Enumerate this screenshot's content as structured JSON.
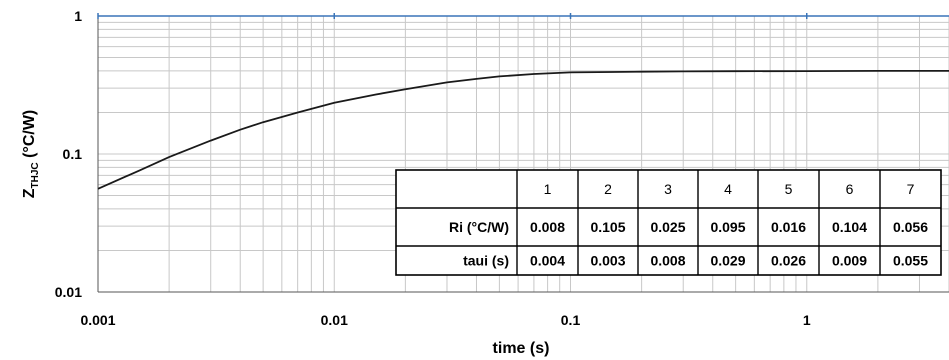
{
  "chart_data": {
    "type": "line",
    "x_scale": "log",
    "y_scale": "log",
    "xlabel": "time (s)",
    "ylabel_main": "Z",
    "ylabel_sub": "THJC",
    "ylabel_unit": " (°C/W)",
    "xlim": [
      0.001,
      4
    ],
    "ylim": [
      0.01,
      1
    ],
    "grid": "on",
    "x_ticks": [
      {
        "value": 0.001,
        "label": "0.001"
      },
      {
        "value": 0.01,
        "label": "0.01"
      },
      {
        "value": 0.1,
        "label": "0.1"
      },
      {
        "value": 1,
        "label": "1"
      }
    ],
    "y_ticks": [
      {
        "value": 0.01,
        "label": "0.01"
      },
      {
        "value": 0.1,
        "label": "0.1"
      },
      {
        "value": 1,
        "label": "1"
      }
    ],
    "series": [
      {
        "x": [
          0.001,
          0.0015,
          0.002,
          0.003,
          0.004,
          0.005,
          0.007,
          0.01,
          0.015,
          0.02,
          0.03,
          0.04,
          0.05,
          0.07,
          0.1,
          0.15,
          0.2,
          0.3,
          0.5,
          1,
          2,
          4
        ],
        "y": [
          0.056,
          0.076,
          0.095,
          0.125,
          0.15,
          0.17,
          0.2,
          0.235,
          0.27,
          0.295,
          0.33,
          0.35,
          0.365,
          0.38,
          0.39,
          0.393,
          0.395,
          0.397,
          0.398,
          0.399,
          0.4,
          0.4
        ]
      }
    ],
    "table": {
      "header": [
        "",
        "1",
        "2",
        "3",
        "4",
        "5",
        "6",
        "7"
      ],
      "rows": [
        [
          "Ri (°C/W)",
          "0.008",
          "0.105",
          "0.025",
          "0.095",
          "0.016",
          "0.104",
          "0.056"
        ],
        [
          "taui (s)",
          "0.004",
          "0.003",
          "0.008",
          "0.029",
          "0.026",
          "0.009",
          "0.055"
        ]
      ]
    }
  }
}
